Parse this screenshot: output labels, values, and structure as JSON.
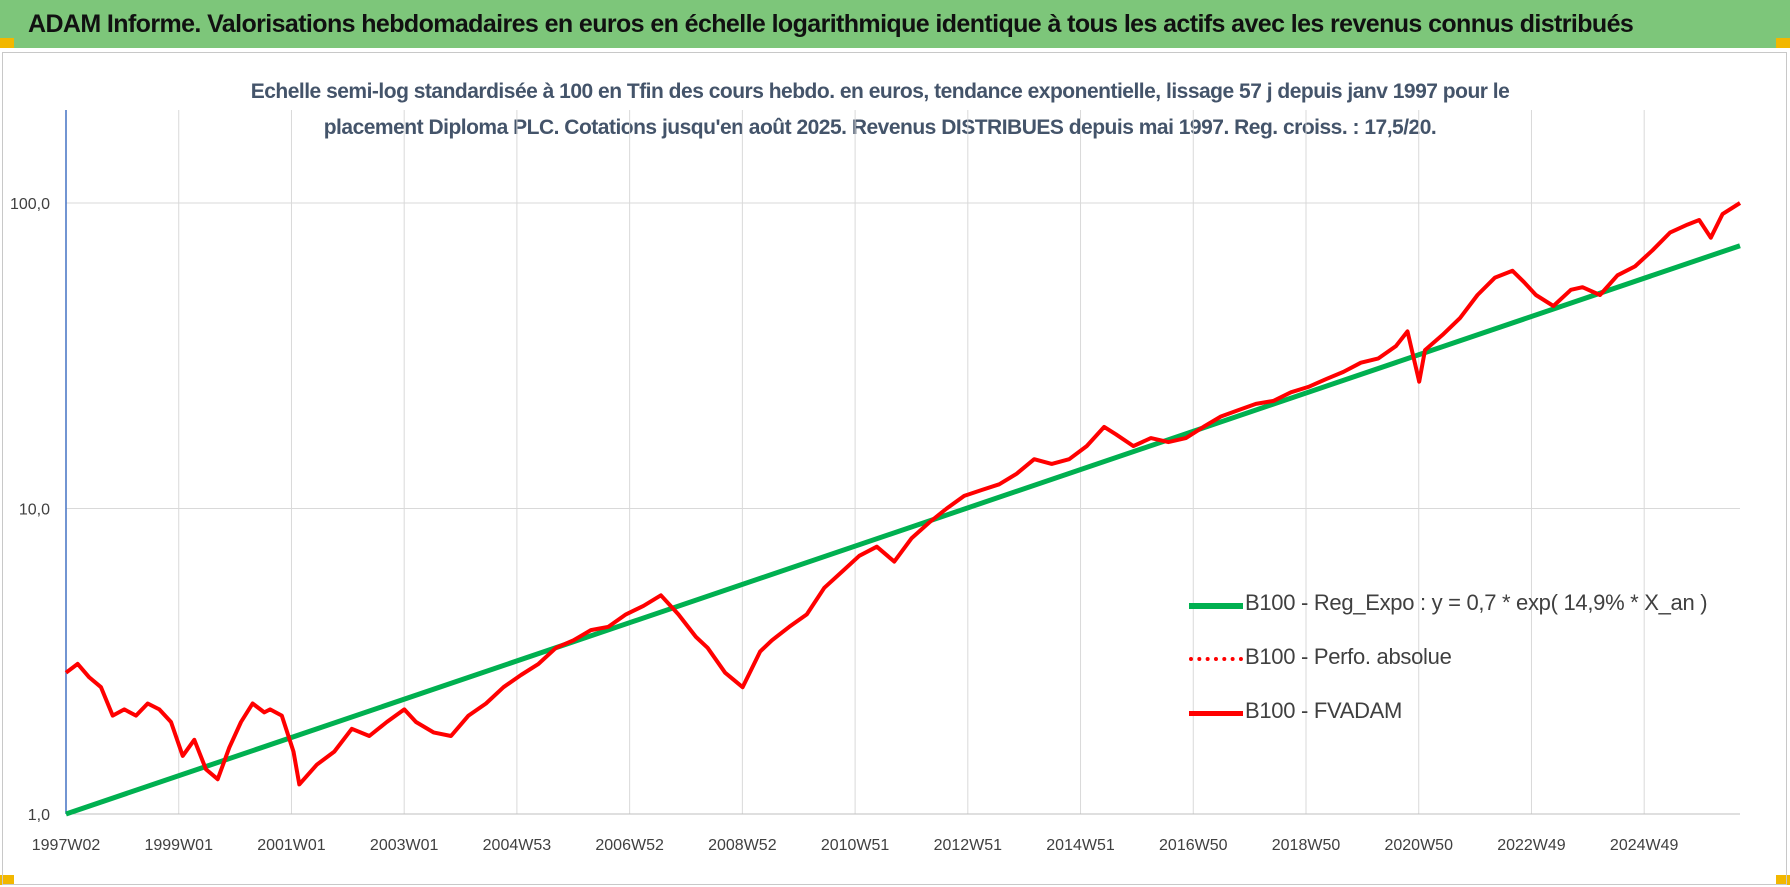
{
  "header": {
    "title": "ADAM Informe. Valorisations hebdomadaires en euros en échelle logarithmique identique à tous les actifs avec les revenus connus distribués"
  },
  "chart_data": {
    "type": "line",
    "title_line1": "Echelle semi-log standardisée à 100 en Tfin des cours hebdo. en euros, tendance exponentielle, lissage 57 j depuis janv 1997 pour le",
    "title_line2": "placement Diploma PLC. Cotations jusqu'en août 2025. Revenus DISTRIBUES depuis mai 1997. Reg. croiss. : 17,5/20.",
    "y_scale": "log",
    "ylim": [
      1,
      100
    ],
    "y_ticks": [
      "1,0",
      "10,0",
      "100,0"
    ],
    "x_ticks": [
      "1997W02",
      "1999W01",
      "2001W01",
      "2003W01",
      "2004W53",
      "2006W52",
      "2008W52",
      "2010W51",
      "2012W51",
      "2014W51",
      "2016W50",
      "2018W50",
      "2020W50",
      "2022W49",
      "2024W49"
    ],
    "xlim": [
      "1997W02",
      "2025W35"
    ],
    "grid": true,
    "legend_position": "right",
    "series": [
      {
        "name": "B100 - Reg_Expo : y = 0,7 * exp( 14,9% *  X_an )",
        "color": "#00b050",
        "style": "solid",
        "x": [
          1997.0,
          2025.7
        ],
        "values": [
          1.0,
          72.5
        ]
      },
      {
        "name": "B100 - Perfo. absolue",
        "color": "#ff0000",
        "style": "dotted",
        "x": [],
        "values": []
      },
      {
        "name": "B100 - FVADAM",
        "color": "#ff0000",
        "style": "solid",
        "x": [
          1997.0,
          1997.2,
          1997.4,
          1997.6,
          1997.8,
          1998.0,
          1998.2,
          1998.4,
          1998.6,
          1998.8,
          1999.0,
          1999.2,
          1999.4,
          1999.6,
          1999.8,
          2000.0,
          2000.2,
          2000.4,
          2000.5,
          2000.7,
          2000.9,
          2001.0,
          2001.3,
          2001.6,
          2001.9,
          2002.2,
          2002.5,
          2002.8,
          2003.0,
          2003.3,
          2003.6,
          2003.9,
          2004.2,
          2004.5,
          2004.8,
          2005.1,
          2005.4,
          2005.7,
          2006.0,
          2006.3,
          2006.6,
          2006.9,
          2007.2,
          2007.5,
          2007.8,
          2008.0,
          2008.3,
          2008.6,
          2008.9,
          2009.1,
          2009.4,
          2009.7,
          2010.0,
          2010.3,
          2010.6,
          2010.9,
          2011.2,
          2011.5,
          2011.8,
          2012.1,
          2012.4,
          2012.7,
          2013.0,
          2013.3,
          2013.6,
          2013.9,
          2014.2,
          2014.5,
          2014.8,
          2015.0,
          2015.3,
          2015.6,
          2015.9,
          2016.2,
          2016.5,
          2016.8,
          2017.1,
          2017.4,
          2017.7,
          2018.0,
          2018.3,
          2018.6,
          2018.9,
          2019.2,
          2019.5,
          2019.8,
          2020.0,
          2020.2,
          2020.3,
          2020.6,
          2020.9,
          2021.2,
          2021.5,
          2021.8,
          2022.0,
          2022.2,
          2022.5,
          2022.8,
          2023.0,
          2023.3,
          2023.6,
          2023.9,
          2024.2,
          2024.5,
          2024.8,
          2025.0,
          2025.2,
          2025.4,
          2025.7
        ],
        "values": [
          2.9,
          3.1,
          2.8,
          2.6,
          2.1,
          2.2,
          2.1,
          2.3,
          2.2,
          2.0,
          1.55,
          1.75,
          1.4,
          1.3,
          1.65,
          2.0,
          2.3,
          2.15,
          2.2,
          2.1,
          1.6,
          1.25,
          1.45,
          1.6,
          1.9,
          1.8,
          2.0,
          2.2,
          2.0,
          1.85,
          1.8,
          2.1,
          2.3,
          2.6,
          2.85,
          3.1,
          3.5,
          3.7,
          4.0,
          4.1,
          4.5,
          4.8,
          5.2,
          4.5,
          3.8,
          3.5,
          2.9,
          2.6,
          3.4,
          3.7,
          4.1,
          4.5,
          5.5,
          6.2,
          7.0,
          7.5,
          6.7,
          8.0,
          9.0,
          10.0,
          11.0,
          11.5,
          12.0,
          13.0,
          14.5,
          14.0,
          14.5,
          16.0,
          18.5,
          17.5,
          16.0,
          17.0,
          16.5,
          17.0,
          18.5,
          20.0,
          21.0,
          22.0,
          22.5,
          24.0,
          25.0,
          26.5,
          28.0,
          30.0,
          31.0,
          34.0,
          38.0,
          26.0,
          33.0,
          37.0,
          42.0,
          50.0,
          57.0,
          60.0,
          55.0,
          50.0,
          46.0,
          52.0,
          53.0,
          50.0,
          58.0,
          62.0,
          70.0,
          80.0,
          85.0,
          88.0,
          77.0,
          92.0,
          100.0
        ]
      }
    ]
  }
}
